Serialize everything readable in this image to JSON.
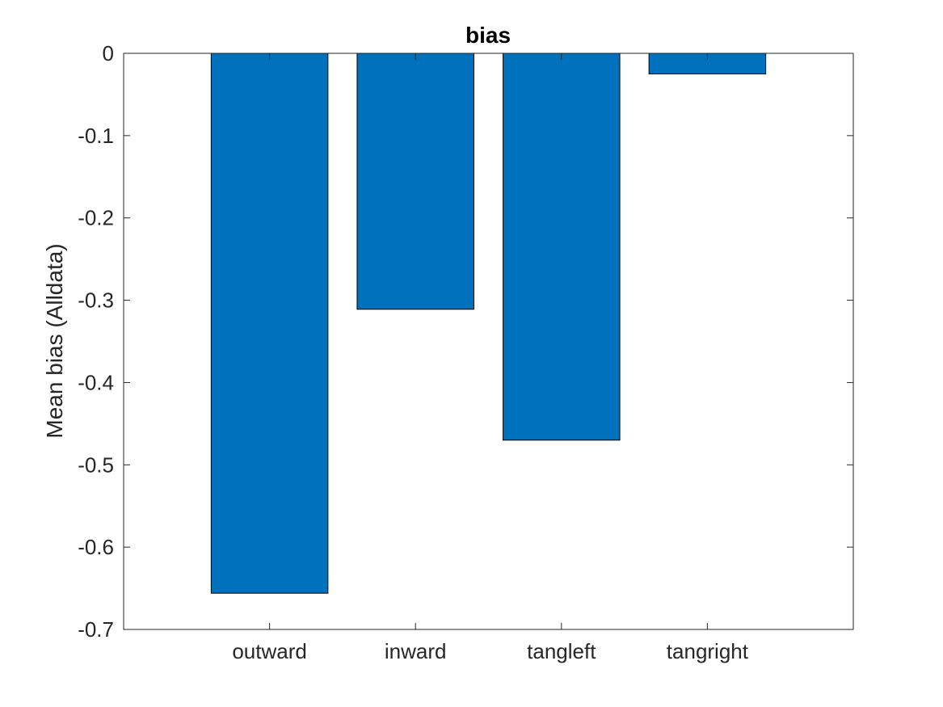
{
  "chart_data": {
    "type": "bar",
    "title": "bias",
    "xlabel": "",
    "ylabel": "Mean bias (Alldata)",
    "categories": [
      "outward",
      "inward",
      "tangleft",
      "tangright"
    ],
    "values": [
      -0.656,
      -0.311,
      -0.47,
      -0.025
    ],
    "ylim": [
      -0.7,
      0
    ],
    "yticks": [
      0,
      -0.1,
      -0.2,
      -0.3,
      -0.4,
      -0.5,
      -0.6,
      -0.7
    ],
    "ytick_labels": [
      "0",
      "-0.1",
      "-0.2",
      "-0.3",
      "-0.4",
      "-0.5",
      "-0.6",
      "-0.7"
    ],
    "xlim": [
      0,
      5
    ],
    "grid": false,
    "bar_color": "#0072bd",
    "bar_edge_color": "#000000",
    "axis_color": "#262626"
  }
}
